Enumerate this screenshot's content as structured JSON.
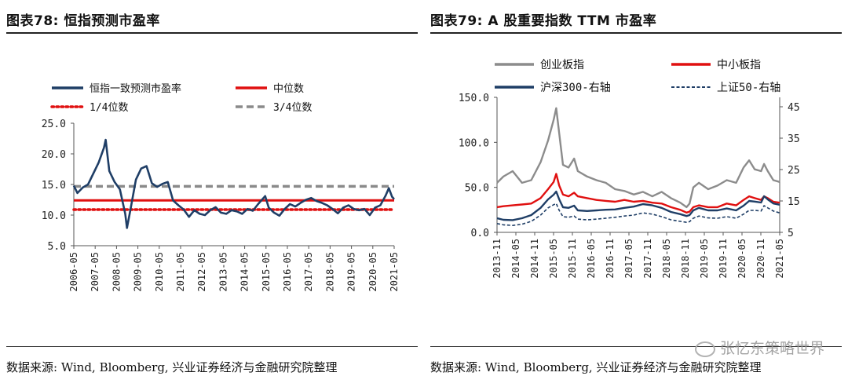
{
  "left": {
    "title": "图表78: 恒指预测市盈率",
    "source": "数据来源: Wind, Bloomberg, 兴业证券经济与金融研究院整理"
  },
  "right": {
    "title": "图表79: A 股重要指数 TTM 市盈率",
    "source": "数据来源: Wind, Bloomberg, 兴业证券经济与金融研究院整理"
  },
  "watermark": "张忆东策略世界",
  "chart_data": [
    {
      "type": "line",
      "title": "",
      "ylim": [
        5,
        25
      ],
      "yticks": [
        "5.0",
        "10.0",
        "15.0",
        "20.0",
        "25.0"
      ],
      "ytick_values": [
        5,
        10,
        15,
        20,
        25
      ],
      "xticks": [
        "2006-05",
        "2007-05",
        "2008-05",
        "2009-05",
        "2010-05",
        "2011-05",
        "2012-05",
        "2013-05",
        "2014-05",
        "2015-05",
        "2016-05",
        "2017-05",
        "2018-05",
        "2019-05",
        "2020-05",
        "2021-05"
      ],
      "xlim": [
        2006.33,
        2021.4
      ],
      "grid": false,
      "legend_position": "top",
      "colors": {
        "pe": "#1f3e66",
        "median": "#e01010",
        "q1": "#e01010",
        "q3": "#8a8a8a"
      },
      "series": [
        {
          "name": "恒指一致预测市盈率",
          "style": "solid-line",
          "color": "#1f3e66",
          "x": [
            2006.33,
            2006.5,
            2006.75,
            2007.0,
            2007.25,
            2007.5,
            2007.75,
            2007.83,
            2008.0,
            2008.25,
            2008.5,
            2008.75,
            2008.83,
            2009.0,
            2009.25,
            2009.5,
            2009.75,
            2010.0,
            2010.25,
            2010.5,
            2010.75,
            2011.0,
            2011.25,
            2011.5,
            2011.75,
            2012.0,
            2012.25,
            2012.5,
            2012.75,
            2013.0,
            2013.25,
            2013.5,
            2013.75,
            2014.0,
            2014.25,
            2014.5,
            2014.75,
            2015.0,
            2015.33,
            2015.5,
            2015.75,
            2016.0,
            2016.25,
            2016.5,
            2016.75,
            2017.0,
            2017.25,
            2017.5,
            2017.75,
            2018.0,
            2018.25,
            2018.5,
            2018.75,
            2019.0,
            2019.25,
            2019.5,
            2019.75,
            2020.0,
            2020.25,
            2020.5,
            2020.75,
            2021.0,
            2021.15,
            2021.3,
            2021.4
          ],
          "y": [
            14.8,
            13.6,
            14.5,
            15.0,
            16.8,
            18.6,
            21.0,
            22.3,
            17.2,
            15.4,
            14.2,
            10.2,
            7.9,
            11.0,
            15.8,
            17.6,
            18.0,
            15.2,
            14.6,
            15.1,
            15.4,
            12.4,
            11.6,
            10.9,
            9.7,
            10.8,
            10.2,
            10.0,
            10.8,
            11.3,
            10.4,
            10.2,
            10.8,
            10.6,
            10.2,
            11.0,
            10.7,
            11.8,
            13.1,
            11.2,
            10.4,
            9.9,
            11.0,
            11.8,
            11.4,
            12.0,
            12.5,
            12.8,
            12.3,
            12.0,
            11.6,
            11.0,
            10.3,
            11.2,
            11.6,
            11.0,
            10.8,
            11.0,
            10.0,
            11.2,
            11.6,
            13.2,
            14.4,
            13.0,
            12.6
          ]
        },
        {
          "name": "中位数",
          "style": "solid-line",
          "color": "#e01010",
          "value": 12.4
        },
        {
          "name": "1/4位数",
          "style": "dotted-line",
          "color": "#e01010",
          "value": 10.9
        },
        {
          "name": "3/4位数",
          "style": "dashed-line",
          "color": "#8a8a8a",
          "value": 14.7
        }
      ]
    },
    {
      "type": "line",
      "title": "",
      "ylim": [
        0,
        150
      ],
      "yticks": [
        "0.0",
        "50.0",
        "100.0",
        "150.0"
      ],
      "ytick_values": [
        0,
        50,
        100,
        150
      ],
      "y2lim": [
        5,
        48
      ],
      "y2ticks": [
        "5",
        "15",
        "25",
        "35",
        "45"
      ],
      "y2tick_values": [
        5,
        15,
        25,
        35,
        45
      ],
      "xticks": [
        "2013-11",
        "2014-05",
        "2014-11",
        "2015-05",
        "2015-11",
        "2016-05",
        "2016-11",
        "2017-05",
        "2017-11",
        "2018-05",
        "2018-11",
        "2019-05",
        "2019-11",
        "2020-05",
        "2020-11",
        "2021-05"
      ],
      "xlim": [
        2013.83,
        2021.42
      ],
      "grid": false,
      "legend_position": "top",
      "series": [
        {
          "name": "创业板指",
          "axis": "left",
          "style": "solid-line",
          "color": "#8c8c8c",
          "x": [
            2013.83,
            2014.0,
            2014.25,
            2014.5,
            2014.75,
            2015.0,
            2015.2,
            2015.35,
            2015.42,
            2015.5,
            2015.6,
            2015.75,
            2015.9,
            2016.0,
            2016.25,
            2016.5,
            2016.75,
            2017.0,
            2017.25,
            2017.5,
            2017.75,
            2018.0,
            2018.25,
            2018.5,
            2018.75,
            2018.92,
            2019.0,
            2019.1,
            2019.25,
            2019.5,
            2019.75,
            2020.0,
            2020.25,
            2020.45,
            2020.6,
            2020.75,
            2020.92,
            2021.0,
            2021.1,
            2021.25,
            2021.42
          ],
          "y": [
            55,
            62,
            68,
            55,
            58,
            78,
            102,
            125,
            138,
            110,
            75,
            72,
            82,
            68,
            62,
            58,
            55,
            48,
            46,
            42,
            45,
            40,
            45,
            38,
            33,
            28,
            32,
            50,
            55,
            48,
            52,
            58,
            55,
            72,
            80,
            70,
            68,
            76,
            68,
            58,
            56
          ]
        },
        {
          "name": "中小板指",
          "axis": "left",
          "style": "solid-line",
          "color": "#e01010",
          "x": [
            2013.83,
            2014.0,
            2014.25,
            2014.5,
            2014.75,
            2015.0,
            2015.2,
            2015.35,
            2015.42,
            2015.5,
            2015.6,
            2015.75,
            2015.9,
            2016.0,
            2016.25,
            2016.5,
            2016.75,
            2017.0,
            2017.25,
            2017.5,
            2017.75,
            2018.0,
            2018.25,
            2018.5,
            2018.75,
            2018.92,
            2019.0,
            2019.1,
            2019.25,
            2019.5,
            2019.75,
            2020.0,
            2020.25,
            2020.45,
            2020.6,
            2020.75,
            2020.92,
            2021.0,
            2021.1,
            2021.25,
            2021.42
          ],
          "y": [
            28,
            29,
            30,
            31,
            32,
            38,
            48,
            56,
            65,
            52,
            42,
            40,
            44,
            40,
            38,
            36,
            35,
            34,
            36,
            34,
            35,
            33,
            32,
            28,
            25,
            22,
            23,
            28,
            30,
            28,
            28,
            32,
            30,
            36,
            40,
            38,
            36,
            40,
            38,
            34,
            33
          ]
        },
        {
          "name": "沪深300-右轴",
          "axis": "right",
          "style": "solid-line",
          "color": "#1f3e66",
          "x": [
            2013.83,
            2014.0,
            2014.25,
            2014.5,
            2014.75,
            2015.0,
            2015.2,
            2015.35,
            2015.42,
            2015.5,
            2015.6,
            2015.75,
            2015.9,
            2016.0,
            2016.25,
            2016.5,
            2016.75,
            2017.0,
            2017.25,
            2017.5,
            2017.75,
            2018.0,
            2018.25,
            2018.5,
            2018.75,
            2018.92,
            2019.0,
            2019.1,
            2019.25,
            2019.5,
            2019.75,
            2020.0,
            2020.25,
            2020.45,
            2020.6,
            2020.75,
            2020.92,
            2021.0,
            2021.1,
            2021.25,
            2021.42
          ],
          "y": [
            9.5,
            9.0,
            8.9,
            9.5,
            10.5,
            12.8,
            15.5,
            17.0,
            18.0,
            15.5,
            13.0,
            12.8,
            13.5,
            12.0,
            11.8,
            12.0,
            12.2,
            12.3,
            12.8,
            13.2,
            14.0,
            13.6,
            12.8,
            11.5,
            10.8,
            10.2,
            10.5,
            12.0,
            12.8,
            12.0,
            12.0,
            12.6,
            12.0,
            13.5,
            15.0,
            14.8,
            14.5,
            16.5,
            15.5,
            14.2,
            13.8
          ]
        },
        {
          "name": "上证50-右轴",
          "axis": "right",
          "style": "dashed-line",
          "color": "#1f3e66",
          "x": [
            2013.83,
            2014.0,
            2014.25,
            2014.5,
            2014.75,
            2015.0,
            2015.2,
            2015.35,
            2015.42,
            2015.5,
            2015.6,
            2015.75,
            2015.9,
            2016.0,
            2016.25,
            2016.5,
            2016.75,
            2017.0,
            2017.25,
            2017.5,
            2017.75,
            2018.0,
            2018.25,
            2018.5,
            2018.75,
            2018.92,
            2019.0,
            2019.1,
            2019.25,
            2019.5,
            2019.75,
            2020.0,
            2020.25,
            2020.45,
            2020.6,
            2020.75,
            2020.92,
            2021.0,
            2021.1,
            2021.25,
            2021.42
          ],
          "y": [
            7.8,
            7.4,
            7.2,
            7.6,
            8.5,
            10.5,
            12.8,
            13.8,
            14.2,
            12.0,
            10.0,
            9.8,
            10.2,
            9.2,
            9.0,
            9.2,
            9.5,
            9.8,
            10.2,
            10.5,
            11.2,
            10.8,
            10.0,
            9.0,
            8.5,
            8.2,
            8.4,
            9.5,
            10.2,
            9.6,
            9.5,
            10.0,
            9.5,
            10.8,
            12.0,
            12.0,
            11.8,
            13.5,
            12.8,
            11.8,
            11.2
          ]
        }
      ]
    }
  ]
}
